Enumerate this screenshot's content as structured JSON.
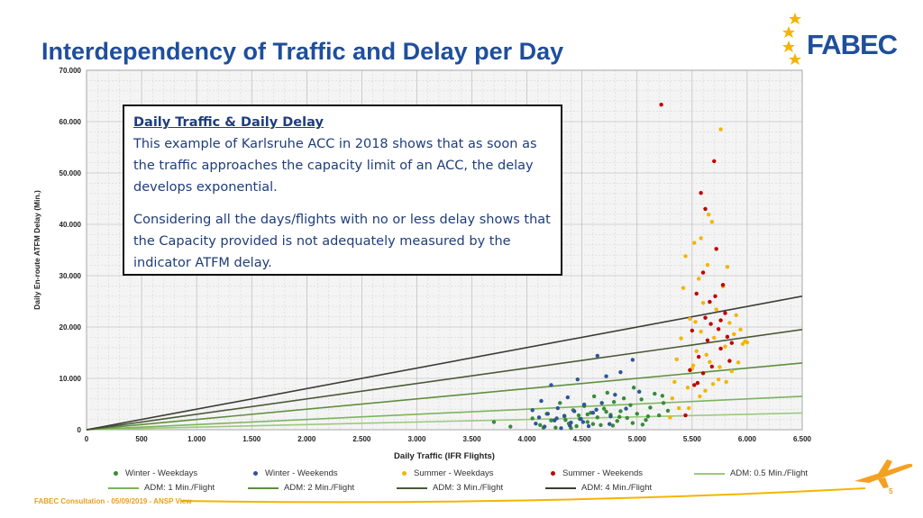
{
  "title": "Interdependency of Traffic and Delay per Day",
  "logo": {
    "text": "FABEC",
    "star_color": "#f4b400",
    "text_color": "#1f4e9c"
  },
  "callout": {
    "heading": "Daily Traffic & Daily Delay ",
    "paragraph1": "This example of Karlsruhe ACC in 2018 shows that as soon as the traffic approaches the capacity limit of an ACC, the delay develops exponential.",
    "paragraph2": "Considering all the days/flights with no or less delay shows that the Capacity provided is not adequately measured by the indicator ATFM delay."
  },
  "footer": "FABEC Consultation - 05/09/2019 - ANSP View",
  "page_number": "5",
  "chart_data": {
    "type": "scatter",
    "xlabel": "Daily Traffic (IFR Flights)",
    "ylabel": "Daily En-route ATFM Delay (Min.)",
    "xlim": [
      0,
      6500
    ],
    "ylim": [
      0,
      70000
    ],
    "x_ticks": [
      "0",
      "500",
      "1.000",
      "1.500",
      "2.000",
      "2.500",
      "3.000",
      "3.500",
      "4.000",
      "4.500",
      "5.000",
      "5.500",
      "6.000",
      "6.500"
    ],
    "y_ticks": [
      "0",
      "10.000",
      "20.000",
      "30.000",
      "40.000",
      "50.000",
      "60.000",
      "70.000"
    ],
    "grid": true,
    "legend_position": "bottom",
    "series": [
      {
        "name": "Winter - Weekdays",
        "kind": "points",
        "color": "#3a8a3a",
        "points": [
          [
            3700,
            1500
          ],
          [
            3850,
            600
          ],
          [
            4050,
            2200
          ],
          [
            4120,
            900
          ],
          [
            4180,
            3100
          ],
          [
            4220,
            1800
          ],
          [
            4260,
            400
          ],
          [
            4300,
            5200
          ],
          [
            4340,
            2600
          ],
          [
            4380,
            1200
          ],
          [
            4420,
            3800
          ],
          [
            4450,
            700
          ],
          [
            4480,
            2100
          ],
          [
            4520,
            4600
          ],
          [
            4550,
            1500
          ],
          [
            4580,
            3300
          ],
          [
            4610,
            6500
          ],
          [
            4640,
            2400
          ],
          [
            4670,
            900
          ],
          [
            4700,
            4100
          ],
          [
            4730,
            7200
          ],
          [
            4760,
            2900
          ],
          [
            4790,
            5400
          ],
          [
            4820,
            1700
          ],
          [
            4850,
            3600
          ],
          [
            4880,
            6100
          ],
          [
            4910,
            2300
          ],
          [
            4940,
            4800
          ],
          [
            4970,
            8200
          ],
          [
            5000,
            3100
          ],
          [
            5040,
            5900
          ],
          [
            5080,
            1900
          ],
          [
            5120,
            4300
          ],
          [
            5160,
            7000
          ],
          [
            5200,
            2800
          ],
          [
            5240,
            5200
          ],
          [
            5280,
            3700
          ],
          [
            4350,
            1900
          ],
          [
            4470,
            2800
          ],
          [
            4600,
            1100
          ],
          [
            4720,
            3500
          ],
          [
            4840,
            2500
          ],
          [
            4960,
            1300
          ],
          [
            5100,
            2600
          ],
          [
            5230,
            6600
          ],
          [
            4150,
            400
          ],
          [
            4400,
            300
          ],
          [
            4550,
            3000
          ],
          [
            4780,
            800
          ],
          [
            5050,
            1000
          ]
        ]
      },
      {
        "name": "Winter - Weekends",
        "kind": "points",
        "color": "#2f5597",
        "points": [
          [
            4050,
            3800
          ],
          [
            4080,
            1200
          ],
          [
            4110,
            2400
          ],
          [
            4130,
            5600
          ],
          [
            4160,
            600
          ],
          [
            4190,
            3100
          ],
          [
            4220,
            8700
          ],
          [
            4250,
            1800
          ],
          [
            4280,
            4200
          ],
          [
            4310,
            300
          ],
          [
            4340,
            2700
          ],
          [
            4370,
            6300
          ],
          [
            4400,
            1400
          ],
          [
            4430,
            3600
          ],
          [
            4460,
            9800
          ],
          [
            4490,
            2100
          ],
          [
            4520,
            4900
          ],
          [
            4560,
            700
          ],
          [
            4600,
            3300
          ],
          [
            4640,
            14400
          ],
          [
            4680,
            5200
          ],
          [
            4720,
            10400
          ],
          [
            4760,
            2600
          ],
          [
            4800,
            6800
          ],
          [
            4850,
            11200
          ],
          [
            4900,
            4100
          ],
          [
            4960,
            13600
          ],
          [
            5020,
            7400
          ],
          [
            4270,
            2200
          ],
          [
            4390,
            800
          ],
          [
            4510,
            1500
          ],
          [
            4630,
            3900
          ],
          [
            4750,
            1100
          ]
        ]
      },
      {
        "name": "Summer - Weekdays",
        "kind": "points",
        "color": "#f2b600",
        "points": [
          [
            5300,
            2400
          ],
          [
            5320,
            6100
          ],
          [
            5340,
            9300
          ],
          [
            5360,
            13700
          ],
          [
            5380,
            4200
          ],
          [
            5400,
            17800
          ],
          [
            5420,
            27600
          ],
          [
            5440,
            33800
          ],
          [
            5460,
            8200
          ],
          [
            5480,
            21600
          ],
          [
            5500,
            11900
          ],
          [
            5520,
            36400
          ],
          [
            5540,
            15300
          ],
          [
            5560,
            29400
          ],
          [
            5580,
            19100
          ],
          [
            5600,
            24700
          ],
          [
            5620,
            7600
          ],
          [
            5640,
            32100
          ],
          [
            5660,
            13200
          ],
          [
            5680,
            40500
          ],
          [
            5700,
            17900
          ],
          [
            5720,
            23400
          ],
          [
            5740,
            9800
          ],
          [
            5760,
            58500
          ],
          [
            5780,
            27900
          ],
          [
            5800,
            16200
          ],
          [
            5820,
            31700
          ],
          [
            5840,
            20800
          ],
          [
            5860,
            11400
          ],
          [
            5880,
            18600
          ],
          [
            5900,
            22300
          ],
          [
            5920,
            13100
          ],
          [
            5940,
            19500
          ],
          [
            5960,
            16700
          ],
          [
            5980,
            17200
          ],
          [
            6000,
            17000
          ],
          [
            5510,
            12500
          ],
          [
            5570,
            6500
          ],
          [
            5630,
            14600
          ],
          [
            5690,
            8900
          ],
          [
            5750,
            12200
          ],
          [
            5810,
            9300
          ],
          [
            5650,
            41900
          ],
          [
            5580,
            37300
          ],
          [
            5470,
            4200
          ],
          [
            5530,
            21000
          ]
        ]
      },
      {
        "name": "Summer - Weekends",
        "kind": "points",
        "color": "#c00000",
        "points": [
          [
            5220,
            63300
          ],
          [
            5440,
            2800
          ],
          [
            5480,
            11600
          ],
          [
            5500,
            19300
          ],
          [
            5520,
            8700
          ],
          [
            5540,
            26500
          ],
          [
            5560,
            14200
          ],
          [
            5580,
            46100
          ],
          [
            5600,
            30600
          ],
          [
            5620,
            21800
          ],
          [
            5640,
            17400
          ],
          [
            5660,
            24900
          ],
          [
            5680,
            12300
          ],
          [
            5700,
            52300
          ],
          [
            5720,
            35200
          ],
          [
            5740,
            19600
          ],
          [
            5760,
            15800
          ],
          [
            5780,
            28200
          ],
          [
            5800,
            22700
          ],
          [
            5820,
            18100
          ],
          [
            5840,
            13400
          ],
          [
            5860,
            16900
          ],
          [
            5620,
            43000
          ],
          [
            5670,
            20600
          ],
          [
            5550,
            9100
          ],
          [
            5710,
            26000
          ],
          [
            5600,
            11000
          ],
          [
            5760,
            21300
          ]
        ]
      },
      {
        "name": "ADM: 0.5 Min./Flight",
        "kind": "line",
        "color": "#9bc97d",
        "slope": 0.5
      },
      {
        "name": "ADM: 1 Min./Flight",
        "kind": "line",
        "color": "#7eb35c",
        "slope": 1
      },
      {
        "name": "ADM: 2 Min./Flight",
        "kind": "line",
        "color": "#5f8f3e",
        "slope": 2
      },
      {
        "name": "ADM: 3 Min./Flight",
        "kind": "line",
        "color": "#4a5a38",
        "slope": 3
      },
      {
        "name": "ADM: 4 Min./Flight",
        "kind": "line",
        "color": "#3c3c36",
        "slope": 4
      }
    ]
  }
}
